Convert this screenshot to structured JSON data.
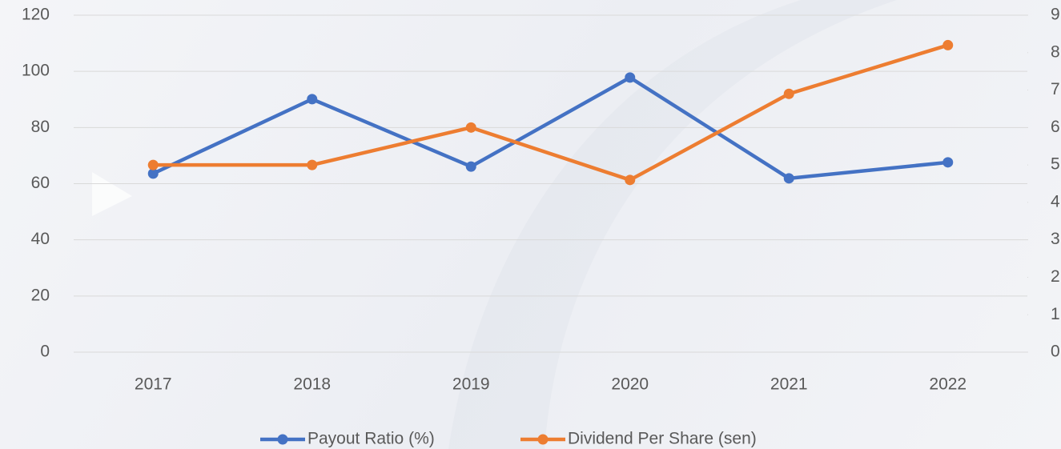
{
  "chart_data": {
    "type": "line",
    "categories": [
      "2017",
      "2018",
      "2019",
      "2020",
      "2021",
      "2022"
    ],
    "series": [
      {
        "name": "Payout Ratio (%)",
        "color": "#4472c4",
        "values": [
          63.6,
          90.1,
          66.1,
          97.8,
          61.9,
          67.6
        ]
      },
      {
        "name": "Dividend Per Share (sen)",
        "color": "#ed7d31",
        "axis": "y2",
        "values": [
          5.0,
          5.0,
          6.0,
          4.6,
          6.9,
          8.2
        ]
      }
    ],
    "ylim": [
      0,
      120
    ],
    "yticks": [
      0,
      20,
      40,
      60,
      80,
      100,
      120
    ],
    "y2lim": [
      0,
      9
    ],
    "y2ticks": [
      0,
      1,
      2,
      3,
      4,
      5,
      6,
      7,
      8,
      9
    ],
    "grid": true,
    "legend": "bottom"
  }
}
